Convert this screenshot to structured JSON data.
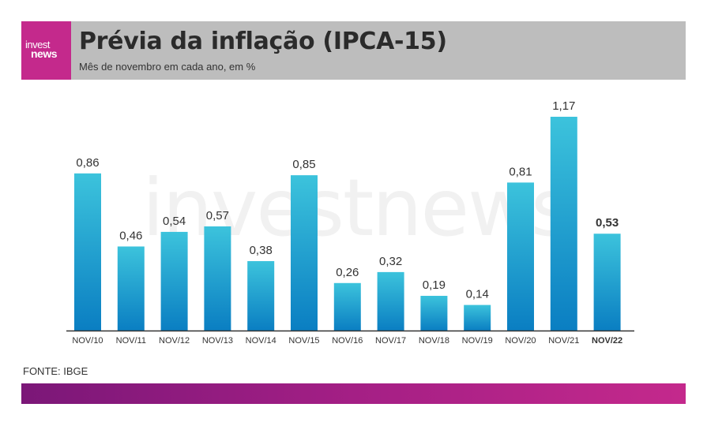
{
  "header": {
    "logo_line1": "invest",
    "logo_line2": "news",
    "title": "Prévia da inflação (IPCA-15)",
    "subtitle": "Mês de novembro em cada ano, em %"
  },
  "watermark": "investnews",
  "source": "FONTE: IBGE",
  "colors": {
    "header_bg": "#bdbdbd",
    "brand": "#c4298c",
    "bar_top": "#3cc3dc",
    "bar_bottom": "#0a7ec2",
    "footer_start": "#7b1778",
    "footer_end": "#c4298c"
  },
  "chart_data": {
    "type": "bar",
    "categories": [
      "NOV/10",
      "NOV/11",
      "NOV/12",
      "NOV/13",
      "NOV/14",
      "NOV/15",
      "NOV/16",
      "NOV/17",
      "NOV/18",
      "NOV/19",
      "NOV/20",
      "NOV/21",
      "NOV/22"
    ],
    "values": [
      0.86,
      0.46,
      0.54,
      0.57,
      0.38,
      0.85,
      0.26,
      0.32,
      0.19,
      0.14,
      0.81,
      1.17,
      0.53
    ],
    "value_labels": [
      "0,86",
      "0,46",
      "0,54",
      "0,57",
      "0,38",
      "0,85",
      "0,26",
      "0,32",
      "0,19",
      "0,14",
      "0,81",
      "1,17",
      "0,53"
    ],
    "highlight_index": 12,
    "grid": false,
    "legend": "none"
  }
}
